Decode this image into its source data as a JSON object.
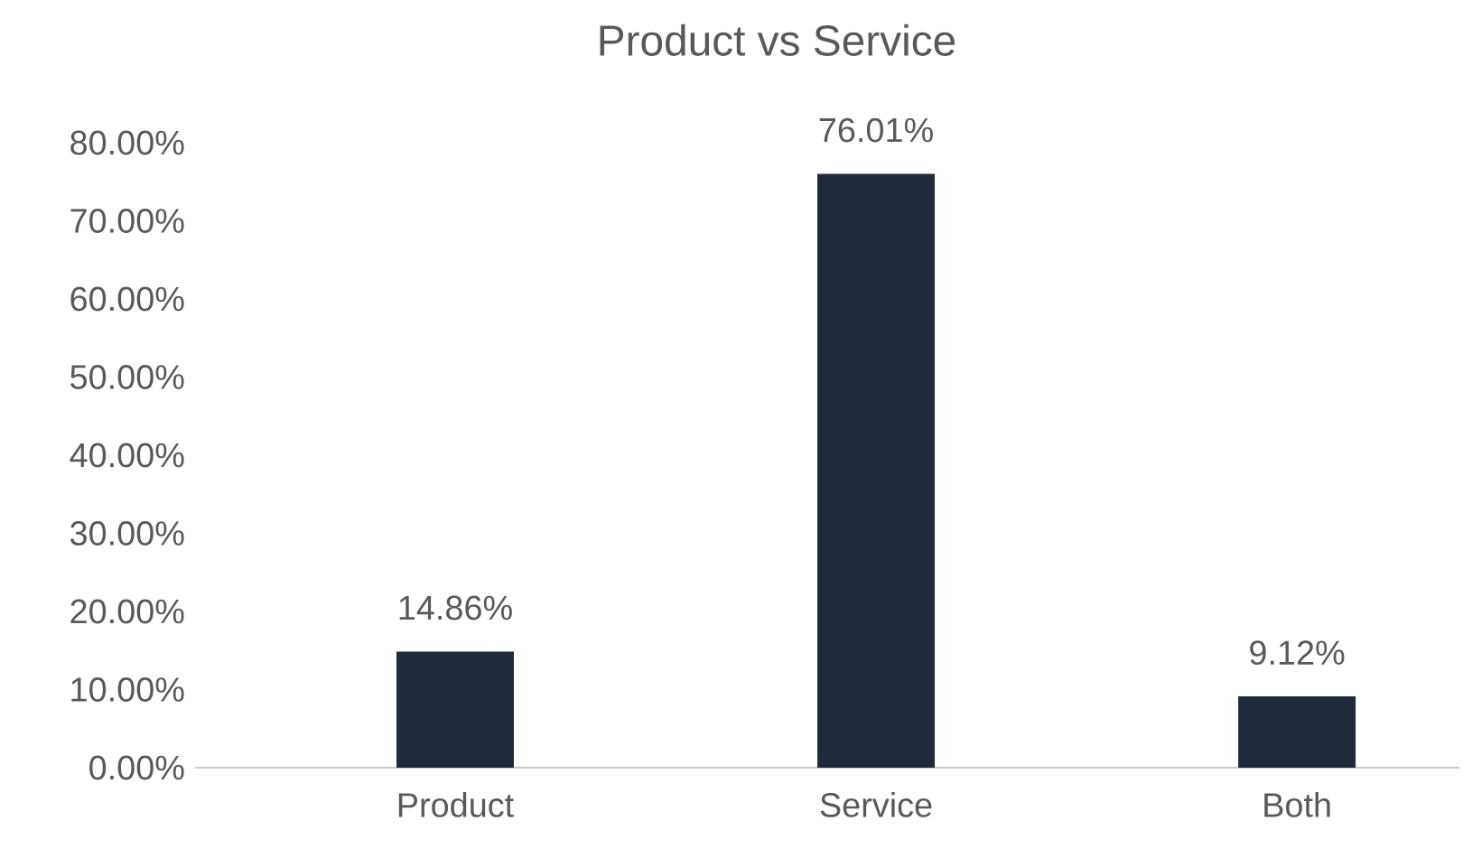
{
  "chart_data": {
    "type": "bar",
    "title": "Product vs Service",
    "categories": [
      "Product",
      "Service",
      "Both"
    ],
    "values": [
      14.86,
      76.01,
      9.12
    ],
    "value_labels": [
      "14.86%",
      "76.01%",
      "9.12%"
    ],
    "color": "#1f2a3b",
    "ylim": [
      0,
      80
    ],
    "yticks": [
      {
        "value": 0,
        "label": "0.00%"
      },
      {
        "value": 10,
        "label": "10.00%"
      },
      {
        "value": 20,
        "label": "20.00%"
      },
      {
        "value": 30,
        "label": "30.00%"
      },
      {
        "value": 40,
        "label": "40.00%"
      },
      {
        "value": 50,
        "label": "50.00%"
      },
      {
        "value": 60,
        "label": "60.00%"
      },
      {
        "value": 70,
        "label": "70.00%"
      },
      {
        "value": 80,
        "label": "80.00%"
      }
    ]
  }
}
